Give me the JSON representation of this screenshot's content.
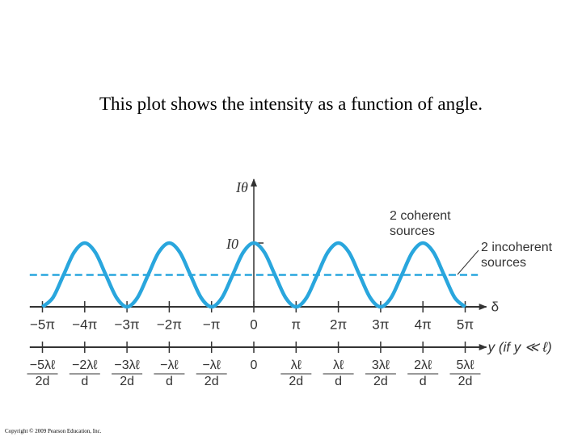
{
  "chart_data": {
    "type": "line",
    "title": "This plot shows the intensity as a function of angle.",
    "y_label": "Iθ",
    "x_label": "δ",
    "x2_label": "y (if y ≪ ℓ)",
    "xlim": [
      -5.3,
      5.5
    ],
    "ylim": [
      0,
      2
    ],
    "xticks": [
      {
        "value": -5,
        "label": "−5π"
      },
      {
        "value": -4,
        "label": "−4π"
      },
      {
        "value": -3,
        "label": "−3π"
      },
      {
        "value": -2,
        "label": "−2π"
      },
      {
        "value": -1,
        "label": "−π"
      },
      0,
      {
        "value": 1,
        "label": "π"
      },
      {
        "value": 2,
        "label": "2π"
      },
      {
        "value": 3,
        "label": "3π"
      },
      {
        "value": 4,
        "label": "4π"
      },
      {
        "value": 5,
        "label": "5π"
      }
    ],
    "yticks": [
      {
        "value": 1,
        "label": "I0"
      }
    ],
    "x2ticks": [
      {
        "value": -5,
        "numerator": "−5λℓ",
        "denominator": "2d"
      },
      {
        "value": -4,
        "numerator": "−2λℓ",
        "denominator": "d"
      },
      {
        "value": -3,
        "numerator": "−3λℓ",
        "denominator": "2d"
      },
      {
        "value": -2,
        "numerator": "−λℓ",
        "denominator": "d"
      },
      {
        "value": -1,
        "numerator": "−λℓ",
        "denominator": "2d"
      },
      {
        "value": 0,
        "numerator": "0"
      },
      {
        "value": 1,
        "numerator": "λℓ",
        "denominator": "2d"
      },
      {
        "value": 2,
        "numerator": "λℓ",
        "denominator": "d"
      },
      {
        "value": 3,
        "numerator": "3λℓ",
        "denominator": "2d"
      },
      {
        "value": 4,
        "numerator": "2λℓ",
        "denominator": "d"
      },
      {
        "value": 5,
        "numerator": "5λℓ",
        "denominator": "2d"
      }
    ],
    "series": [
      {
        "name": "2 coherent sources",
        "color": "#29a6dd",
        "dashed": false,
        "x": [
          -5,
          -4.75,
          -4.5,
          -4.25,
          -4,
          -3.75,
          -3.5,
          -3.25,
          -3,
          -2.75,
          -2.5,
          -2.25,
          -2,
          -1.75,
          -1.5,
          -1.25,
          -1,
          -0.75,
          -0.5,
          -0.25,
          0,
          0.25,
          0.5,
          0.75,
          1,
          1.25,
          1.5,
          1.75,
          2,
          2.25,
          2.5,
          2.75,
          3,
          3.25,
          3.5,
          3.75,
          4,
          4.25,
          4.5,
          4.75,
          5
        ],
        "values": [
          0,
          0.146,
          0.5,
          0.854,
          1,
          0.854,
          0.5,
          0.146,
          0,
          0.146,
          0.5,
          0.854,
          1,
          0.854,
          0.5,
          0.146,
          0,
          0.146,
          0.5,
          0.854,
          1,
          0.854,
          0.5,
          0.146,
          0,
          0.146,
          0.5,
          0.854,
          1,
          0.854,
          0.5,
          0.146,
          0,
          0.146,
          0.5,
          0.854,
          1,
          0.854,
          0.5,
          0.146,
          0
        ]
      },
      {
        "name": "2 incoherent sources",
        "color": "#29a6dd",
        "dashed": true,
        "x": [
          -5.3,
          5.3
        ],
        "values": [
          0.5,
          0.5
        ]
      }
    ],
    "copyright": "Copyright © 2009 Pearson Education, Inc."
  }
}
